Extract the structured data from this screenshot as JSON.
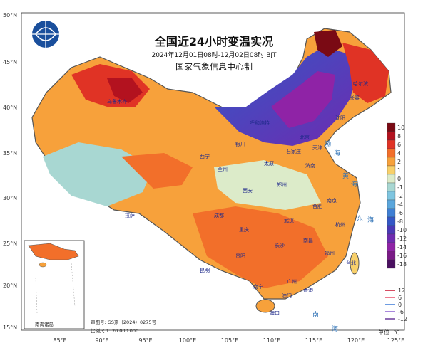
{
  "title": {
    "line1": "全国近24小时变温实况",
    "line2": "2024年12月01日08时-12月02日08时 BJT",
    "line3": "国家气象信息中心制"
  },
  "axes": {
    "lat_labels": [
      "50°N",
      "45°N",
      "40°N",
      "35°N",
      "30°N",
      "25°N",
      "20°N",
      "15°N"
    ],
    "lon_labels": [
      "85°E",
      "90°E",
      "95°E",
      "100°E",
      "105°E",
      "110°E",
      "115°E",
      "120°E",
      "125°E"
    ]
  },
  "colorbar": {
    "labels": [
      "10",
      "8",
      "6",
      "4",
      "2",
      "1",
      "0",
      "-1",
      "-2",
      "-4",
      "-6",
      "-8",
      "-10",
      "-12",
      "-14",
      "-16",
      "-18"
    ],
    "colors": [
      "#7a0a14",
      "#b3121f",
      "#e03325",
      "#f26f2a",
      "#f7a13b",
      "#f8d06a",
      "#dcebc9",
      "#a8d7d2",
      "#7ec5e0",
      "#5aa6dc",
      "#3f7fd4",
      "#3457c6",
      "#4a39b6",
      "#6e2bb0",
      "#8f23a6",
      "#7a1a86",
      "#4a1060"
    ]
  },
  "isotherm_legend": [
    {
      "label": "12",
      "color": "#c8102e"
    },
    {
      "label": "6",
      "color": "#e8506a"
    },
    {
      "label": "0",
      "color": "#3d7bd9"
    },
    {
      "label": "-6",
      "color": "#8a5fd1"
    },
    {
      "label": "-12",
      "color": "#6a3a9a"
    }
  ],
  "unit": "单位: ℃",
  "inset": {
    "label": "南海诸岛"
  },
  "footer": {
    "approval": "审图号: GS京（2024）0275号",
    "scale": "比例尺  1: 20 000 000"
  },
  "places": [
    "石家庄",
    "济南",
    "郑州",
    "武汉",
    "合肥",
    "南京",
    "杭州",
    "长沙",
    "南昌",
    "福州",
    "台北",
    "广州",
    "香港",
    "澳门",
    "南宁",
    "海口",
    "贵阳",
    "昆明",
    "成都",
    "重庆",
    "拉萨",
    "西宁",
    "兰州",
    "银川",
    "太原",
    "呼和浩特",
    "北京",
    "天津",
    "沈阳",
    "长春",
    "哈尔滨",
    "乌鲁木齐",
    "西安"
  ],
  "seas": [
    "渤",
    "海",
    "黄",
    "海",
    "东",
    "海",
    "南",
    "海"
  ],
  "colors": {
    "border": "#555555",
    "background": "#ffffff"
  }
}
